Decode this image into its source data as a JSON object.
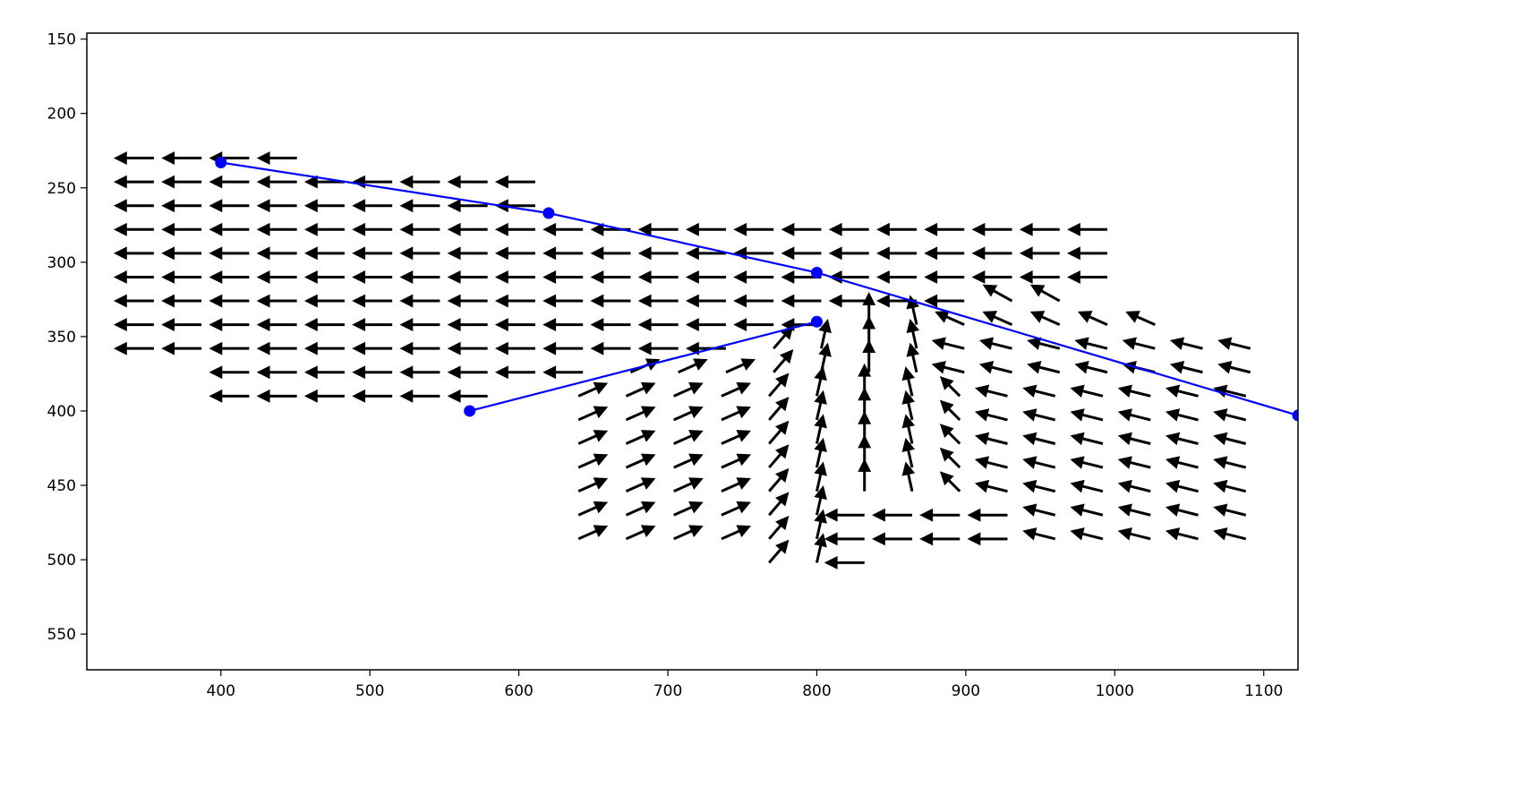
{
  "chart_data": {
    "type": "quiver",
    "xlim": [
      310,
      1123
    ],
    "ylim": [
      146,
      574
    ],
    "y_inverted": true,
    "xticks": [
      400,
      500,
      600,
      700,
      800,
      900,
      1000,
      1100
    ],
    "yticks": [
      150,
      200,
      250,
      300,
      350,
      400,
      450,
      500,
      550
    ],
    "arrow_color": "#000000",
    "arrows": [
      {
        "y": 230,
        "x": [
          355,
          387,
          419,
          451
        ],
        "u": [
          -25,
          -25,
          -25,
          -25
        ],
        "v": [
          0,
          0,
          0,
          0
        ]
      },
      {
        "y": 246,
        "x": [
          355,
          387,
          419,
          451,
          483,
          515,
          547,
          579,
          611
        ],
        "u": [
          -25,
          -25,
          -25,
          -25,
          -25,
          -25,
          -25,
          -25,
          -25
        ],
        "v": [
          0,
          0,
          0,
          0,
          0,
          0,
          0,
          0,
          0
        ]
      },
      {
        "y": 262,
        "x": [
          355,
          387,
          419,
          451,
          483,
          515,
          547,
          579,
          611
        ],
        "u": [
          -25,
          -25,
          -25,
          -25,
          -25,
          -25,
          -25,
          -25,
          -25
        ],
        "v": [
          0,
          0,
          0,
          0,
          0,
          0,
          0,
          0,
          0
        ]
      },
      {
        "y": 278,
        "x": [
          355,
          387,
          419,
          451,
          483,
          515,
          547,
          579,
          611,
          643,
          675,
          707,
          739,
          771,
          803,
          835,
          867,
          899,
          931,
          963,
          995
        ],
        "u": [
          -25,
          -25,
          -25,
          -25,
          -25,
          -25,
          -25,
          -25,
          -25,
          -25,
          -25,
          -25,
          -25,
          -25,
          -25,
          -25,
          -25,
          -25,
          -25,
          -25,
          -25
        ],
        "v": [
          0,
          0,
          0,
          0,
          0,
          0,
          0,
          0,
          0,
          0,
          0,
          0,
          0,
          0,
          0,
          0,
          0,
          0,
          0,
          0,
          0
        ]
      },
      {
        "y": 294,
        "x": [
          355,
          387,
          419,
          451,
          483,
          515,
          547,
          579,
          611,
          643,
          675,
          707,
          739,
          771,
          803,
          835,
          867,
          899,
          931,
          963,
          995
        ],
        "u": [
          -25,
          -25,
          -25,
          -25,
          -25,
          -25,
          -25,
          -25,
          -25,
          -25,
          -25,
          -25,
          -25,
          -25,
          -25,
          -25,
          -25,
          -25,
          -25,
          -25,
          -25
        ],
        "v": [
          0,
          0,
          0,
          0,
          0,
          0,
          0,
          0,
          0,
          0,
          0,
          0,
          0,
          0,
          0,
          0,
          0,
          0,
          0,
          0,
          0
        ]
      },
      {
        "y": 310,
        "x": [
          355,
          387,
          419,
          451,
          483,
          515,
          547,
          579,
          611,
          643,
          675,
          707,
          739,
          771,
          803,
          835,
          867,
          899,
          931,
          963,
          995
        ],
        "u": [
          -25,
          -25,
          -25,
          -25,
          -25,
          -25,
          -25,
          -25,
          -25,
          -25,
          -25,
          -25,
          -25,
          -25,
          -25,
          -25,
          -25,
          -25,
          -25,
          -25,
          -25
        ],
        "v": [
          0,
          0,
          0,
          0,
          0,
          0,
          0,
          0,
          0,
          0,
          0,
          0,
          0,
          0,
          0,
          0,
          0,
          0,
          0,
          0,
          0
        ]
      },
      {
        "y": 326,
        "x": [
          355,
          387,
          419,
          451,
          483,
          515,
          547,
          579,
          611,
          643,
          675,
          707,
          739,
          771,
          803,
          835,
          867,
          899,
          931,
          963
        ],
        "u": [
          -25,
          -25,
          -25,
          -25,
          -25,
          -25,
          -25,
          -25,
          -25,
          -25,
          -25,
          -25,
          -25,
          -25,
          -25,
          -25,
          -25,
          -25,
          -18,
          -18
        ],
        "v": [
          0,
          0,
          0,
          0,
          0,
          0,
          0,
          0,
          0,
          0,
          0,
          0,
          0,
          0,
          0,
          0,
          0,
          0,
          -10,
          -10
        ]
      },
      {
        "y": 342,
        "x": [
          355,
          387,
          419,
          451,
          483,
          515,
          547,
          579,
          611,
          643,
          675,
          707,
          739,
          771,
          803,
          835,
          867,
          899,
          931,
          963,
          995,
          1027
        ],
        "u": [
          -25,
          -25,
          -25,
          -25,
          -25,
          -25,
          -25,
          -25,
          -25,
          -25,
          -25,
          -25,
          -25,
          -25,
          -25,
          0,
          -4,
          -18,
          -18,
          -18,
          -18,
          -18
        ],
        "v": [
          0,
          0,
          0,
          0,
          0,
          0,
          0,
          0,
          0,
          0,
          0,
          0,
          0,
          0,
          0,
          -20,
          -18,
          -8,
          -8,
          -8,
          -8,
          -8
        ]
      },
      {
        "y": 358,
        "x": [
          355,
          387,
          419,
          451,
          483,
          515,
          547,
          579,
          611,
          643,
          675,
          707,
          739,
          771,
          803,
          835,
          867,
          899,
          931,
          963,
          995,
          1027,
          1059,
          1091
        ],
        "u": [
          -25,
          -25,
          -25,
          -25,
          -25,
          -25,
          -25,
          -25,
          -25,
          -25,
          -25,
          -25,
          -25,
          12,
          4,
          0,
          -4,
          -20,
          -20,
          -20,
          -20,
          -20,
          -20,
          -20
        ],
        "v": [
          0,
          0,
          0,
          0,
          0,
          0,
          0,
          0,
          0,
          0,
          0,
          0,
          0,
          -14,
          -18,
          -20,
          -18,
          -5,
          -5,
          -5,
          -5,
          -5,
          -5,
          -5
        ]
      },
      {
        "y": 374,
        "x": [
          419,
          451,
          483,
          515,
          547,
          579,
          611,
          643,
          675,
          707,
          739,
          771,
          803,
          835,
          867,
          899,
          931,
          963,
          995,
          1027,
          1059,
          1091
        ],
        "u": [
          -25,
          -25,
          -25,
          -25,
          -25,
          -25,
          -25,
          -25,
          18,
          18,
          18,
          12,
          4,
          0,
          -4,
          -20,
          -20,
          -20,
          -20,
          -20,
          -20,
          -20
        ],
        "v": [
          0,
          0,
          0,
          0,
          0,
          0,
          0,
          0,
          -8,
          -8,
          -8,
          -14,
          -18,
          -20,
          -18,
          -5,
          -5,
          -5,
          -5,
          -5,
          -5,
          -5
        ]
      },
      {
        "y": 390,
        "x": [
          419,
          451,
          483,
          515,
          547,
          579,
          640,
          672,
          704,
          736,
          768,
          800,
          832,
          864,
          896,
          928,
          960,
          992,
          1024,
          1056,
          1088
        ],
        "u": [
          -25,
          -25,
          -25,
          -25,
          -25,
          -25,
          18,
          18,
          18,
          18,
          12,
          4,
          0,
          -4,
          -12,
          -20,
          -20,
          -20,
          -20,
          -20,
          -20
        ],
        "v": [
          0,
          0,
          0,
          0,
          0,
          0,
          -8,
          -8,
          -8,
          -8,
          -14,
          -18,
          -20,
          -18,
          -12,
          -5,
          -5,
          -5,
          -5,
          -5,
          -5
        ]
      },
      {
        "y": 406,
        "x": [
          640,
          672,
          704,
          736,
          768,
          800,
          832,
          864,
          896,
          928,
          960,
          992,
          1024,
          1056,
          1088
        ],
        "u": [
          18,
          18,
          18,
          18,
          12,
          4,
          0,
          -4,
          -12,
          -20,
          -20,
          -20,
          -20,
          -20,
          -20
        ],
        "v": [
          -8,
          -8,
          -8,
          -8,
          -14,
          -18,
          -20,
          -18,
          -12,
          -5,
          -5,
          -5,
          -5,
          -5,
          -5
        ]
      },
      {
        "y": 422,
        "x": [
          640,
          672,
          704,
          736,
          768,
          800,
          832,
          864,
          896,
          928,
          960,
          992,
          1024,
          1056,
          1088
        ],
        "u": [
          18,
          18,
          18,
          18,
          12,
          4,
          0,
          -4,
          -12,
          -20,
          -20,
          -20,
          -20,
          -20,
          -20
        ],
        "v": [
          -8,
          -8,
          -8,
          -8,
          -14,
          -18,
          -20,
          -18,
          -12,
          -5,
          -5,
          -5,
          -5,
          -5,
          -5
        ]
      },
      {
        "y": 438,
        "x": [
          640,
          672,
          704,
          736,
          768,
          800,
          832,
          864,
          896,
          928,
          960,
          992,
          1024,
          1056,
          1088
        ],
        "u": [
          18,
          18,
          18,
          18,
          12,
          4,
          0,
          -4,
          -12,
          -20,
          -20,
          -20,
          -20,
          -20,
          -20
        ],
        "v": [
          -8,
          -8,
          -8,
          -8,
          -14,
          -18,
          -20,
          -18,
          -12,
          -5,
          -5,
          -5,
          -5,
          -5,
          -5
        ]
      },
      {
        "y": 454,
        "x": [
          640,
          672,
          704,
          736,
          768,
          800,
          832,
          864,
          896,
          928,
          960,
          992,
          1024,
          1056,
          1088
        ],
        "u": [
          18,
          18,
          18,
          18,
          12,
          4,
          0,
          -4,
          -12,
          -20,
          -20,
          -20,
          -20,
          -20,
          -20
        ],
        "v": [
          -8,
          -8,
          -8,
          -8,
          -14,
          -18,
          -20,
          -18,
          -12,
          -5,
          -5,
          -5,
          -5,
          -5,
          -5
        ]
      },
      {
        "y": 470,
        "x": [
          640,
          672,
          704,
          736,
          768,
          800,
          832,
          864,
          896,
          928,
          960,
          992,
          1024,
          1056,
          1088
        ],
        "u": [
          18,
          18,
          18,
          18,
          12,
          4,
          -25,
          -25,
          -25,
          -25,
          -20,
          -20,
          -20,
          -20,
          -20
        ],
        "v": [
          -8,
          -8,
          -8,
          -8,
          -14,
          -18,
          0,
          0,
          0,
          0,
          -5,
          -5,
          -5,
          -5,
          -5
        ]
      },
      {
        "y": 486,
        "x": [
          640,
          672,
          704,
          736,
          768,
          800,
          832,
          864,
          896,
          928,
          960,
          992,
          1024,
          1056,
          1088
        ],
        "u": [
          18,
          18,
          18,
          18,
          12,
          4,
          -25,
          -25,
          -25,
          -25,
          -20,
          -20,
          -20,
          -20,
          -20
        ],
        "v": [
          -8,
          -8,
          -8,
          -8,
          -14,
          -18,
          0,
          0,
          0,
          0,
          -5,
          -5,
          -5,
          -5,
          -5
        ]
      },
      {
        "y": 502,
        "x": [
          768,
          800,
          832
        ],
        "u": [
          12,
          4,
          -25
        ],
        "v": [
          -14,
          -18,
          0
        ]
      }
    ],
    "series": [
      {
        "color": "#0000ff",
        "x": [
          400,
          620,
          800,
          1123
        ],
        "y": [
          233,
          267,
          307,
          403
        ]
      },
      {
        "color": "#0000ff",
        "x": [
          567,
          800
        ],
        "y": [
          400,
          340
        ]
      }
    ]
  }
}
